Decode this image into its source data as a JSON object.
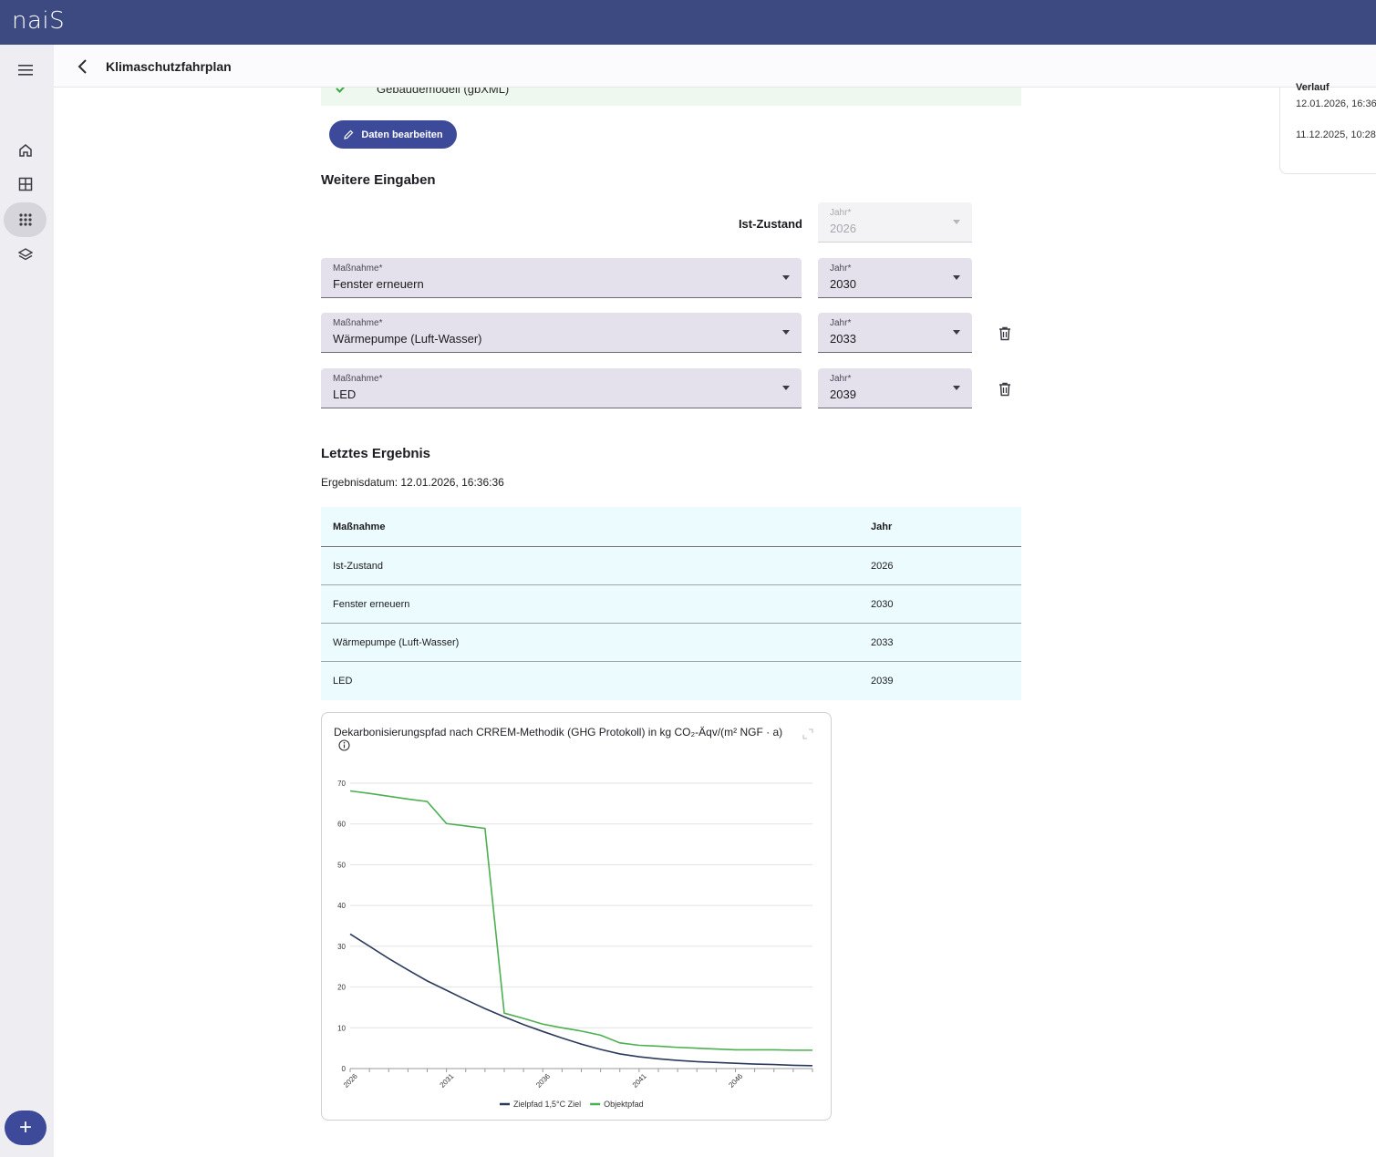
{
  "app": {
    "logo": "naiS"
  },
  "header": {
    "title": "Klimaschutzfahrplan"
  },
  "right_panel": {
    "heading": "Verlauf",
    "dates": [
      "12.01.2026, 16:36",
      "11.12.2025, 10:28"
    ]
  },
  "inputs_done": {
    "model_label": "Gebäudemodell (gbXML)"
  },
  "edit_button": {
    "label": "Daten bearbeiten"
  },
  "weitere": {
    "title": "Weitere Eingaben",
    "ist": {
      "label": "Ist-Zustand",
      "year_label": "Jahr*",
      "year": "2026"
    },
    "measures": [
      {
        "label": "Maßnahme*",
        "value": "Fenster erneuern",
        "year_label": "Jahr*",
        "year": "2030"
      },
      {
        "label": "Maßnahme*",
        "value": "Wärmepumpe (Luft-Wasser)",
        "year_label": "Jahr*",
        "year": "2033"
      },
      {
        "label": "Maßnahme*",
        "value": "LED",
        "year_label": "Jahr*",
        "year": "2039"
      }
    ]
  },
  "result": {
    "title": "Letztes Ergebnis",
    "date": "Ergebnisdatum: 12.01.2026, 16:36:36",
    "table": {
      "headers": [
        "Maßnahme",
        "Jahr"
      ],
      "rows": [
        [
          "Ist-Zustand",
          "2026"
        ],
        [
          "Fenster erneuern",
          "2030"
        ],
        [
          "Wärmepumpe (Luft-Wasser)",
          "2033"
        ],
        [
          "LED",
          "2039"
        ]
      ]
    }
  },
  "chart_data": {
    "type": "line",
    "title": "Dekarbonisierungspfad nach CRREM-Methodik (GHG Protokoll) in kg CO₂-Äqv/(m² NGF · a)",
    "x": [
      2026,
      2027,
      2028,
      2029,
      2030,
      2031,
      2032,
      2033,
      2034,
      2035,
      2036,
      2037,
      2038,
      2039,
      2040,
      2041,
      2042,
      2043,
      2044,
      2045,
      2046,
      2047,
      2048,
      2049,
      2050
    ],
    "x_tick_labels": [
      "2026",
      "2031",
      "2036",
      "2041",
      "2046"
    ],
    "ylim": [
      0,
      70
    ],
    "y_ticks": [
      0,
      10,
      20,
      30,
      40,
      50,
      60,
      70
    ],
    "grid": true,
    "legend": "bottom",
    "series": [
      {
        "name": "Zielpfad 1,5°C Ziel",
        "color": "#2b3a5c",
        "values": [
          33,
          30,
          27,
          24.2,
          21.5,
          19.2,
          16.9,
          14.7,
          12.7,
          10.8,
          9.1,
          7.5,
          6.0,
          4.7,
          3.6,
          2.9,
          2.4,
          2.0,
          1.7,
          1.5,
          1.3,
          1.1,
          1.0,
          0.8,
          0.7
        ]
      },
      {
        "name": "Objektpfad",
        "color": "#4caf50",
        "values": [
          68.1,
          67.5,
          66.8,
          66.1,
          65.5,
          60.1,
          59.5,
          58.9,
          13.6,
          12.3,
          10.9,
          10.0,
          9.2,
          8.2,
          6.3,
          5.7,
          5.5,
          5.2,
          5.0,
          4.8,
          4.6,
          4.6,
          4.6,
          4.5,
          4.5
        ]
      }
    ]
  }
}
